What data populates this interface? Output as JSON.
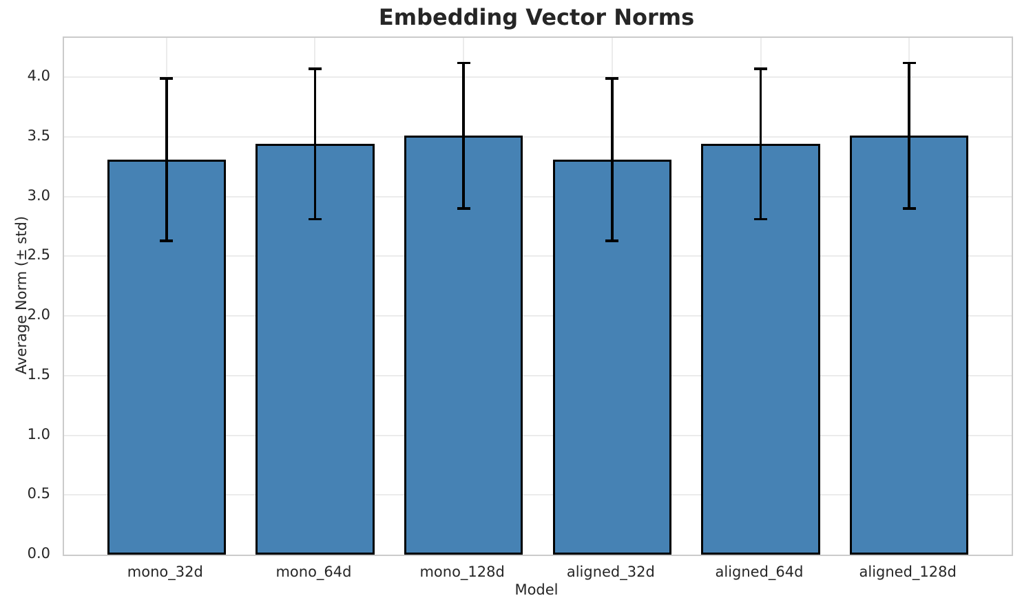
{
  "chart_data": {
    "type": "bar",
    "title": "Embedding Vector Norms",
    "xlabel": "Model",
    "ylabel": "Average Norm (± std)",
    "categories": [
      "mono_32d",
      "mono_64d",
      "mono_128d",
      "aligned_32d",
      "aligned_64d",
      "aligned_128d"
    ],
    "values": [
      3.31,
      3.44,
      3.51,
      3.31,
      3.44,
      3.51
    ],
    "errors": [
      0.68,
      0.63,
      0.61,
      0.68,
      0.63,
      0.61
    ],
    "yticks": [
      0.0,
      0.5,
      1.0,
      1.5,
      2.0,
      2.5,
      3.0,
      3.5,
      4.0
    ],
    "ytick_labels": [
      "0.0",
      "0.5",
      "1.0",
      "1.5",
      "2.0",
      "2.5",
      "3.0",
      "3.5",
      "4.0"
    ],
    "ylim": [
      0,
      4.33
    ],
    "grid": true,
    "legend_position": "none",
    "colors": {
      "bar_fill": "#4682b4",
      "bar_edge": "#000000",
      "error_bar": "#000000",
      "grid_line": "#ebebeb",
      "spine": "#cbcbcb",
      "text": "#262626"
    }
  }
}
